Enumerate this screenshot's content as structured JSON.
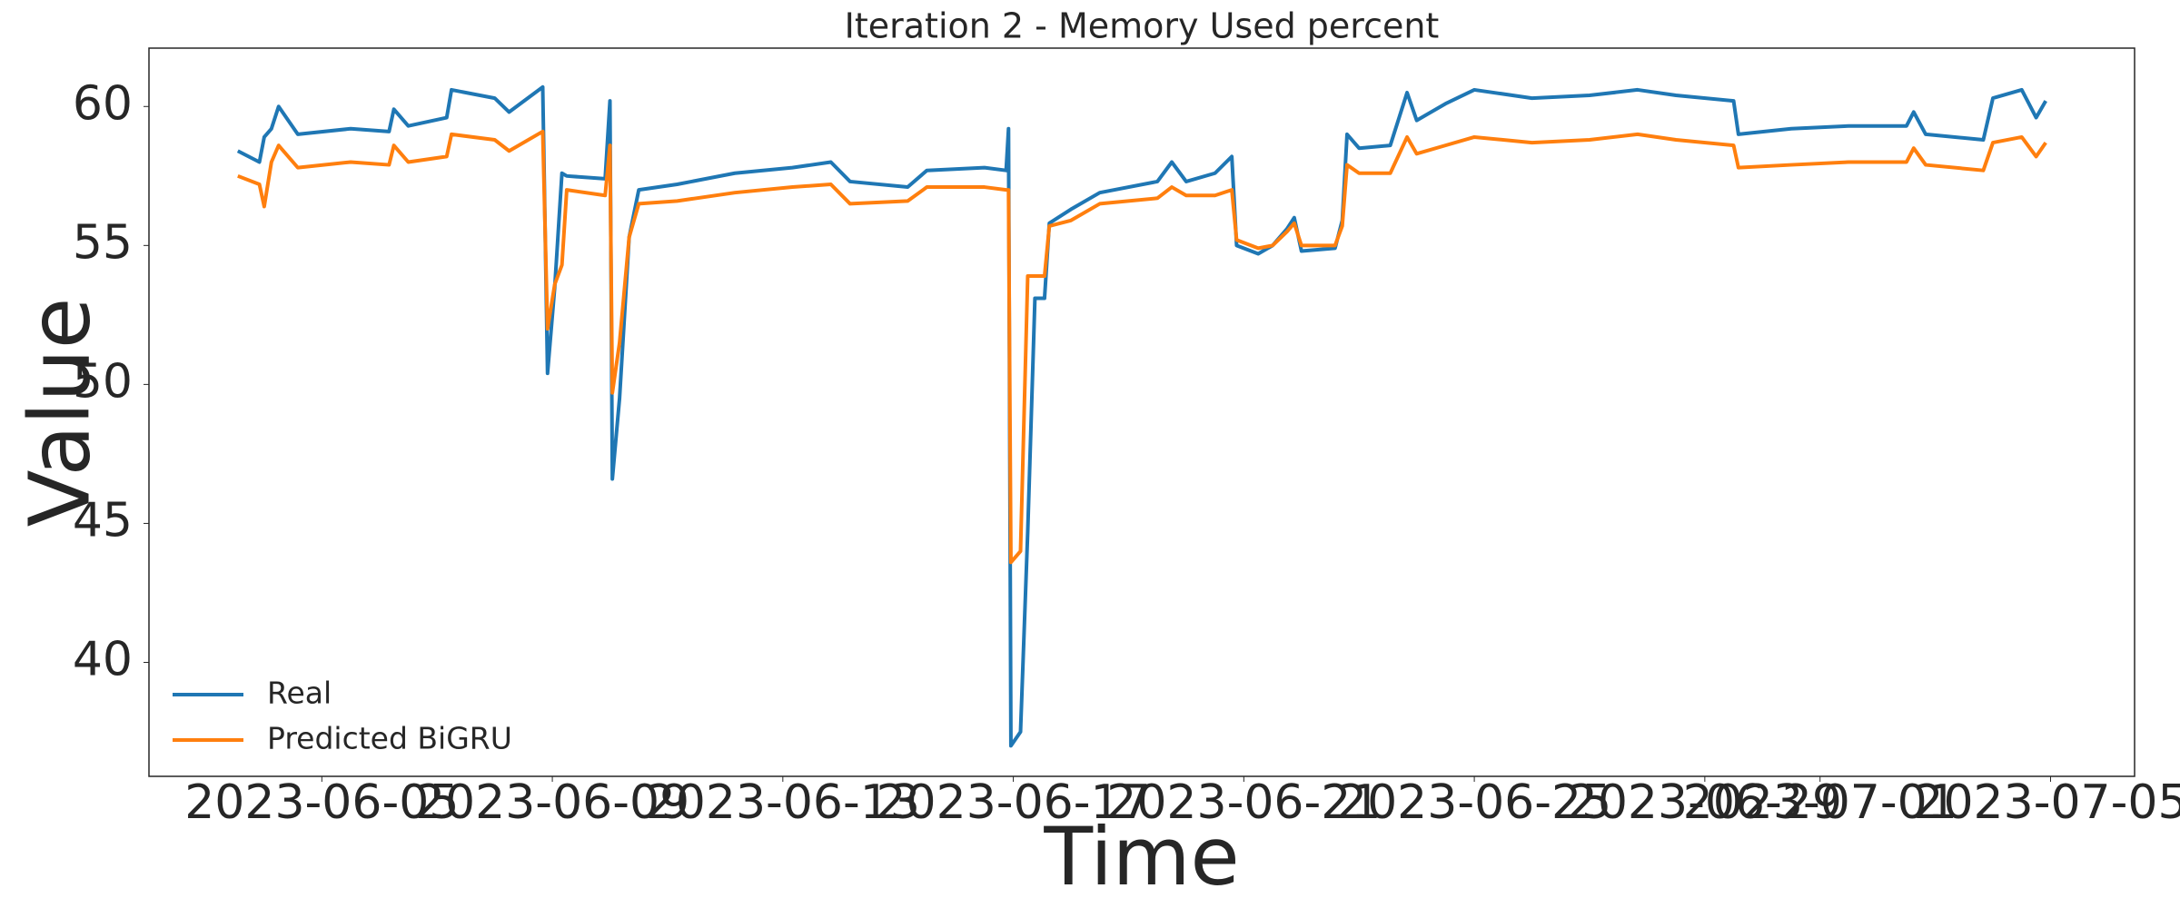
{
  "chart_data": {
    "type": "line",
    "title": "Iteration 2 - Memory Used percent",
    "xlabel": "Time",
    "ylabel": "Value",
    "x": [
      "2023-06-03 13:00",
      "2023-06-03 22:00",
      "2023-06-04 00:00",
      "2023-06-04 03:00",
      "2023-06-04 06:00",
      "2023-06-04 14:00",
      "2023-06-05 12:00",
      "2023-06-06 04:00",
      "2023-06-06 06:00",
      "2023-06-06 12:00",
      "2023-06-07 04:00",
      "2023-06-07 06:00",
      "2023-06-08 00:00",
      "2023-06-08 06:00",
      "2023-06-08 20:00",
      "2023-06-08 22:00",
      "2023-06-09 01:00",
      "2023-06-09 04:00",
      "2023-06-09 06:00",
      "2023-06-09 22:00",
      "2023-06-10 00:00",
      "2023-06-10 01:00",
      "2023-06-10 04:00",
      "2023-06-10 08:00",
      "2023-06-10 12:00",
      "2023-06-11 04:00",
      "2023-06-12 04:00",
      "2023-06-13 04:00",
      "2023-06-13 20:00",
      "2023-06-14 04:00",
      "2023-06-15 04:00",
      "2023-06-15 12:00",
      "2023-06-16 12:00",
      "2023-06-16 21:00",
      "2023-06-16 22:00",
      "2023-06-16 23:00",
      "2023-06-17 03:00",
      "2023-06-17 06:00",
      "2023-06-17 09:00",
      "2023-06-17 13:00",
      "2023-06-17 15:00",
      "2023-06-18 00:00",
      "2023-06-18 12:00",
      "2023-06-19 12:00",
      "2023-06-19 18:00",
      "2023-06-20 00:00",
      "2023-06-20 12:00",
      "2023-06-20 19:00",
      "2023-06-20 21:00",
      "2023-06-21 06:00",
      "2023-06-21 12:00",
      "2023-06-21 18:00",
      "2023-06-21 21:00",
      "2023-06-22 00:00",
      "2023-06-22 14:00",
      "2023-06-22 17:00",
      "2023-06-22 19:00",
      "2023-06-23 00:00",
      "2023-06-23 13:00",
      "2023-06-23 20:00",
      "2023-06-24 00:00",
      "2023-06-24 12:00",
      "2023-06-25 00:00",
      "2023-06-26 00:00",
      "2023-06-27 00:00",
      "2023-06-27 20:00",
      "2023-06-28 12:00",
      "2023-06-29 12:00",
      "2023-06-29 14:00",
      "2023-06-30 12:00",
      "2023-07-01 12:00",
      "2023-07-02 12:00",
      "2023-07-02 15:00",
      "2023-07-02 20:00",
      "2023-07-03 20:00",
      "2023-07-04 00:00",
      "2023-07-04 12:00",
      "2023-07-04 18:00",
      "2023-07-04 22:00"
    ],
    "series": [
      {
        "name": "Real",
        "color": "#1f77b4",
        "values": [
          58.4,
          58.0,
          58.9,
          59.2,
          60.0,
          59.0,
          59.2,
          59.1,
          59.9,
          59.3,
          59.6,
          60.6,
          60.3,
          59.8,
          60.7,
          50.4,
          53.5,
          57.6,
          57.5,
          57.4,
          60.2,
          46.6,
          49.5,
          55.3,
          57.0,
          57.2,
          57.6,
          57.8,
          58.0,
          57.3,
          57.1,
          57.7,
          57.8,
          57.7,
          59.2,
          37.0,
          37.5,
          44.7,
          53.1,
          53.1,
          55.8,
          56.3,
          56.9,
          57.3,
          58.0,
          57.3,
          57.6,
          58.2,
          55.0,
          54.7,
          55.0,
          55.6,
          56.0,
          54.8,
          54.9,
          55.9,
          59.0,
          58.5,
          58.6,
          60.5,
          59.5,
          60.1,
          60.6,
          60.3,
          60.4,
          60.6,
          60.4,
          60.2,
          59.0,
          59.2,
          59.3,
          59.3,
          59.8,
          59.0,
          58.8,
          60.3,
          60.6,
          59.6,
          60.2
        ]
      },
      {
        "name": "Predicted BiGRU",
        "color": "#ff7f0e",
        "values": [
          57.5,
          57.2,
          56.4,
          58.0,
          58.6,
          57.8,
          58.0,
          57.9,
          58.6,
          58.0,
          58.2,
          59.0,
          58.8,
          58.4,
          59.1,
          52.0,
          53.6,
          54.3,
          57.0,
          56.8,
          58.6,
          49.7,
          51.5,
          55.3,
          56.5,
          56.6,
          56.9,
          57.1,
          57.2,
          56.5,
          56.6,
          57.1,
          57.1,
          57.0,
          57.0,
          43.6,
          44.0,
          53.9,
          53.9,
          53.9,
          55.7,
          55.9,
          56.5,
          56.7,
          57.1,
          56.8,
          56.8,
          57.0,
          55.2,
          54.9,
          55.0,
          55.5,
          55.8,
          55.0,
          55.0,
          55.7,
          57.9,
          57.6,
          57.6,
          58.9,
          58.3,
          58.6,
          58.9,
          58.7,
          58.8,
          59.0,
          58.8,
          58.6,
          57.8,
          57.9,
          58.0,
          58.0,
          58.5,
          57.9,
          57.7,
          58.7,
          58.9,
          58.2,
          58.7
        ]
      }
    ],
    "xlim": [
      "2023-06-02 00:00",
      "2023-07-06 11:00"
    ],
    "xticks": [
      "2023-06-05",
      "2023-06-09",
      "2023-06-13",
      "2023-06-17",
      "2023-06-21",
      "2023-06-25",
      "2023-06-29",
      "2023-07-01",
      "2023-07-05"
    ],
    "ylim": [
      35.9,
      62.1
    ],
    "yticks": [
      40,
      45,
      50,
      55,
      60
    ],
    "grid": false,
    "legend": "lower left"
  }
}
